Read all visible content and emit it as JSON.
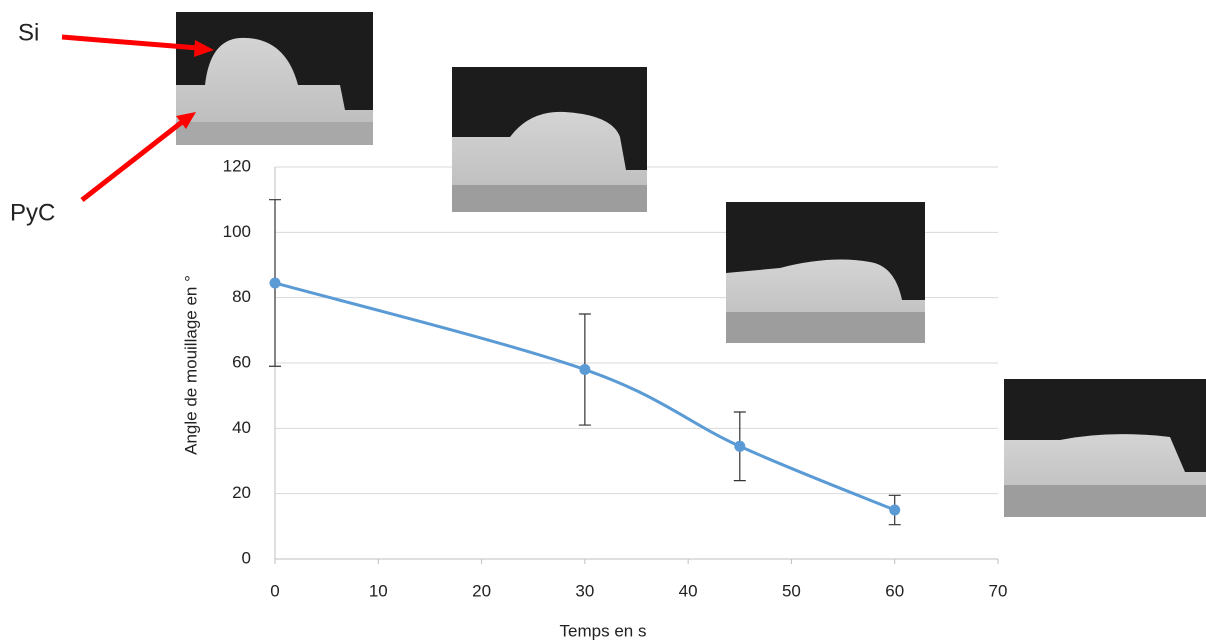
{
  "chart_data": {
    "type": "line",
    "xlabel": "Temps en s",
    "ylabel": "Angle de mouillage en °",
    "annotations": [
      "Si",
      "PyC"
    ],
    "x": [
      0,
      30,
      45,
      60
    ],
    "series": [
      {
        "name": "Angle de mouillage",
        "color": "#5b9bd5",
        "values": [
          84.5,
          58,
          34.5,
          15
        ],
        "errors": [
          25.5,
          17,
          10.5,
          4.5
        ]
      }
    ],
    "xlim": [
      0,
      70
    ],
    "xticks": [
      0,
      10,
      20,
      30,
      40,
      50,
      60,
      70
    ],
    "ylim": [
      0,
      120
    ],
    "yticks": [
      0,
      20,
      40,
      60,
      80,
      100,
      120
    ],
    "grid": true
  }
}
